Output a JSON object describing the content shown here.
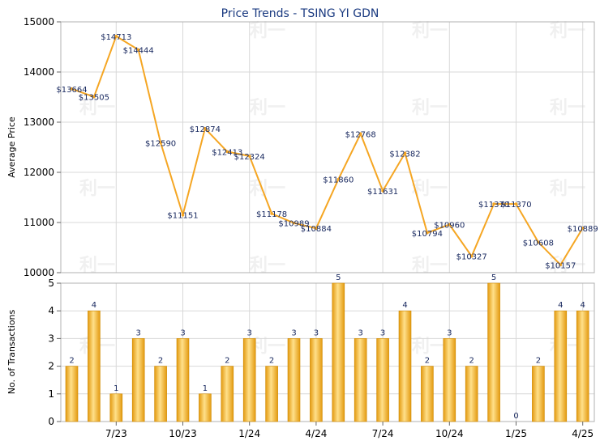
{
  "chart_data": [
    {
      "type": "line",
      "title": "Price Trends - TSING YI GDN",
      "ylabel": "Average Price",
      "ylim": [
        10000,
        15000
      ],
      "yticks": [
        "10000",
        "11000",
        "12000",
        "13000",
        "14000",
        "15000"
      ],
      "line_color": "#f5a623",
      "values": [
        13664,
        13505,
        14713,
        14444,
        12590,
        11151,
        12874,
        12413,
        12324,
        11178,
        10989,
        10884,
        11860,
        12768,
        11631,
        12382,
        10794,
        10960,
        10327,
        11370,
        11370,
        10608,
        10157,
        10889
      ],
      "labels": [
        "$13664",
        "$13505",
        "$14713",
        "$14444",
        "$12590",
        "$11151",
        "$12874",
        "$12413",
        "$12324",
        "$11178",
        "$10989",
        "$10884",
        "$11860",
        "$12768",
        "$11631",
        "$12382",
        "$10794",
        "$10960",
        "$10327",
        "$11370",
        "$11370",
        "$10608",
        "$10157",
        "$10889"
      ]
    },
    {
      "type": "bar",
      "ylabel": "No. of Transactions",
      "ylim": [
        0,
        5
      ],
      "yticks": [
        "0",
        "1",
        "2",
        "3",
        "4",
        "5"
      ],
      "bar_color": "#f5a623",
      "values": [
        2,
        4,
        1,
        3,
        2,
        3,
        1,
        2,
        3,
        2,
        3,
        3,
        5,
        3,
        3,
        4,
        2,
        3,
        2,
        5,
        0,
        2,
        4,
        4
      ],
      "xticks": [
        {
          "index": 2,
          "label": "7/23"
        },
        {
          "index": 5,
          "label": "10/23"
        },
        {
          "index": 8,
          "label": "1/24"
        },
        {
          "index": 11,
          "label": "4/24"
        },
        {
          "index": 14,
          "label": "7/24"
        },
        {
          "index": 17,
          "label": "10/24"
        },
        {
          "index": 20,
          "label": "1/25"
        },
        {
          "index": 23,
          "label": "4/25"
        }
      ]
    }
  ],
  "watermark": "利一"
}
